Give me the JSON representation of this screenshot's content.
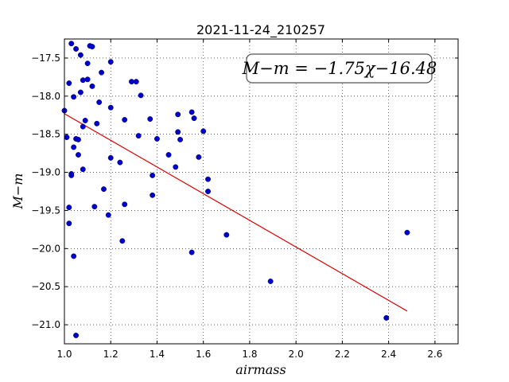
{
  "chart_data": {
    "type": "scatter",
    "title": "2021-11-24_210257",
    "xlabel": "airmass",
    "ylabel": "M−m",
    "xlim": [
      1.0,
      2.7
    ],
    "ylim": [
      -21.25,
      -17.25
    ],
    "x_ticks": [
      1.0,
      1.2,
      1.4,
      1.6,
      1.8,
      2.0,
      2.2,
      2.4,
      2.6
    ],
    "x_tick_labels": [
      "1.0",
      "1.2",
      "1.4",
      "1.6",
      "1.8",
      "2.0",
      "2.2",
      "2.4",
      "2.6"
    ],
    "y_ticks": [
      -17.5,
      -18.0,
      -18.5,
      -19.0,
      -19.5,
      -20.0,
      -20.5,
      -21.0
    ],
    "y_tick_labels": [
      "−17.5",
      "−18.0",
      "−18.5",
      "−19.0",
      "−19.5",
      "−20.0",
      "−20.5",
      "−21.0"
    ],
    "grid": true,
    "annotation": "M−m = −1.75χ−16.48",
    "fit_line": {
      "slope": -1.75,
      "intercept": -16.48,
      "x": [
        1.0,
        2.48
      ]
    },
    "series": [
      {
        "points": [
          [
            1.0,
            -18.19
          ],
          [
            1.01,
            -18.54
          ],
          [
            1.02,
            -17.83
          ],
          [
            1.02,
            -19.46
          ],
          [
            1.02,
            -19.67
          ],
          [
            1.03,
            -19.02
          ],
          [
            1.03,
            -19.04
          ],
          [
            1.03,
            -17.31
          ],
          [
            1.04,
            -18.01
          ],
          [
            1.04,
            -18.67
          ],
          [
            1.04,
            -20.1
          ],
          [
            1.05,
            -17.38
          ],
          [
            1.05,
            -18.56
          ],
          [
            1.05,
            -21.14
          ],
          [
            1.06,
            -18.57
          ],
          [
            1.06,
            -18.77
          ],
          [
            1.07,
            -17.46
          ],
          [
            1.07,
            -17.95
          ],
          [
            1.08,
            -18.4
          ],
          [
            1.08,
            -17.79
          ],
          [
            1.08,
            -18.96
          ],
          [
            1.09,
            -18.32
          ],
          [
            1.1,
            -17.57
          ],
          [
            1.1,
            -17.78
          ],
          [
            1.11,
            -17.34
          ],
          [
            1.12,
            -17.35
          ],
          [
            1.12,
            -17.87
          ],
          [
            1.13,
            -19.45
          ],
          [
            1.14,
            -18.36
          ],
          [
            1.15,
            -18.08
          ],
          [
            1.16,
            -17.69
          ],
          [
            1.17,
            -19.22
          ],
          [
            1.19,
            -19.56
          ],
          [
            1.2,
            -17.55
          ],
          [
            1.2,
            -18.15
          ],
          [
            1.2,
            -18.81
          ],
          [
            1.24,
            -18.87
          ],
          [
            1.25,
            -19.9
          ],
          [
            1.26,
            -19.42
          ],
          [
            1.26,
            -18.31
          ],
          [
            1.29,
            -17.81
          ],
          [
            1.31,
            -17.81
          ],
          [
            1.32,
            -18.52
          ],
          [
            1.33,
            -17.99
          ],
          [
            1.37,
            -18.3
          ],
          [
            1.38,
            -19.04
          ],
          [
            1.38,
            -19.3
          ],
          [
            1.4,
            -18.56
          ],
          [
            1.45,
            -18.77
          ],
          [
            1.48,
            -18.93
          ],
          [
            1.49,
            -18.24
          ],
          [
            1.49,
            -18.47
          ],
          [
            1.5,
            -18.57
          ],
          [
            1.55,
            -20.05
          ],
          [
            1.55,
            -18.21
          ],
          [
            1.56,
            -18.29
          ],
          [
            1.58,
            -18.8
          ],
          [
            1.6,
            -18.46
          ],
          [
            1.62,
            -19.09
          ],
          [
            1.62,
            -19.25
          ],
          [
            1.7,
            -19.82
          ],
          [
            1.89,
            -20.43
          ],
          [
            2.39,
            -20.91
          ],
          [
            2.48,
            -19.79
          ]
        ]
      }
    ]
  }
}
